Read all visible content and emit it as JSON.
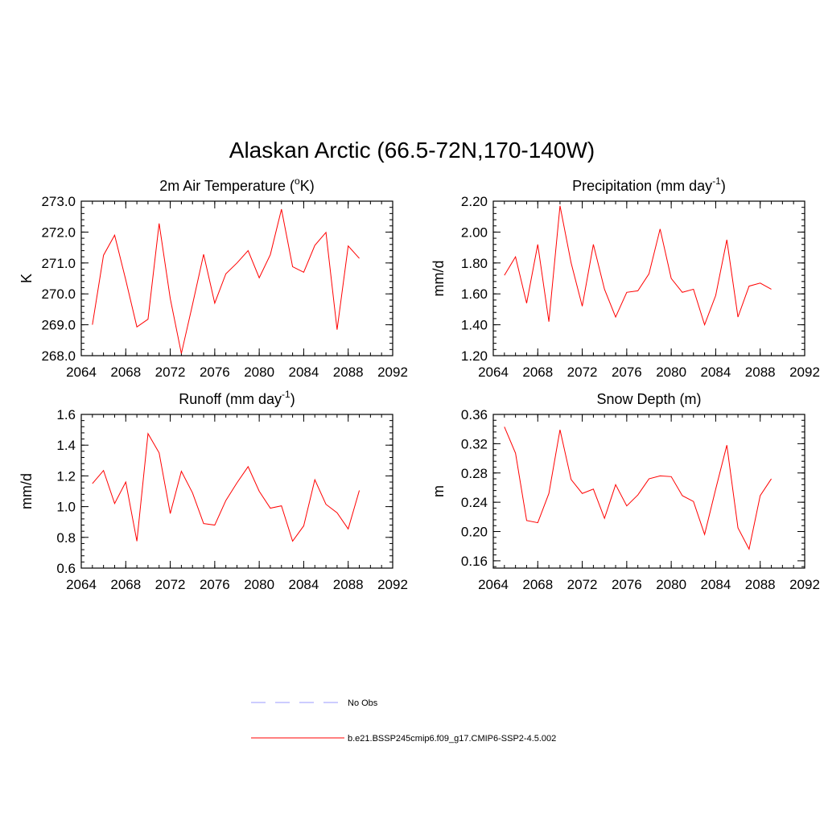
{
  "title": "Alaskan Arctic (66.5-72N,170-140W)",
  "legend": {
    "items": [
      {
        "label": "No Obs",
        "color": "#9999ff",
        "dash": true
      },
      {
        "label": "b.e21.BSSP245cmip6.f09_g17.CMIP6-SSP2-4.5.002",
        "color": "#ff0000",
        "dash": false
      }
    ]
  },
  "chart_data": [
    {
      "type": "line",
      "title_main": "2m Air Temperature (",
      "title_sup": "o",
      "title_tail": "K)",
      "ylabel": "K",
      "xlim": [
        2064,
        2092
      ],
      "ylim": [
        268.0,
        273.0
      ],
      "xticks": [
        2064,
        2068,
        2072,
        2076,
        2080,
        2084,
        2088,
        2092
      ],
      "xtick_labels": [
        "2064",
        "2068",
        "2072",
        "2076",
        "2080",
        "2084",
        "2088",
        "2092"
      ],
      "yticks": [
        268.0,
        269.0,
        270.0,
        271.0,
        272.0,
        273.0
      ],
      "ytick_labels": [
        "268.0",
        "269.0",
        "270.0",
        "271.0",
        "272.0",
        "273.0"
      ],
      "series": [
        {
          "color": "#ff0000",
          "x": [
            2065,
            2066,
            2067,
            2068,
            2069,
            2070,
            2071,
            2072,
            2073,
            2074,
            2075,
            2076,
            2077,
            2078,
            2079,
            2080,
            2081,
            2082,
            2083,
            2084,
            2085,
            2086,
            2087,
            2088,
            2089
          ],
          "y": [
            269.0,
            271.25,
            271.9,
            270.45,
            268.93,
            269.18,
            272.28,
            269.85,
            268.07,
            269.65,
            271.28,
            269.7,
            270.65,
            271.0,
            271.4,
            270.52,
            271.27,
            272.74,
            270.88,
            270.7,
            271.57,
            271.99,
            268.84,
            271.55,
            271.15
          ]
        }
      ]
    },
    {
      "type": "line",
      "title_main": "Precipitation (mm day",
      "title_sup": "-1",
      "title_tail": ")",
      "ylabel": "mm/d",
      "xlim": [
        2064,
        2092
      ],
      "ylim": [
        1.2,
        2.2
      ],
      "xticks": [
        2064,
        2068,
        2072,
        2076,
        2080,
        2084,
        2088,
        2092
      ],
      "xtick_labels": [
        "2064",
        "2068",
        "2072",
        "2076",
        "2080",
        "2084",
        "2088",
        "2092"
      ],
      "yticks": [
        1.2,
        1.4,
        1.6,
        1.8,
        2.0,
        2.2
      ],
      "ytick_labels": [
        "1.20",
        "1.40",
        "1.60",
        "1.80",
        "2.00",
        "2.20"
      ],
      "series": [
        {
          "color": "#ff0000",
          "x": [
            2065,
            2066,
            2067,
            2068,
            2069,
            2070,
            2071,
            2072,
            2073,
            2074,
            2075,
            2076,
            2077,
            2078,
            2079,
            2080,
            2081,
            2082,
            2083,
            2084,
            2085,
            2086,
            2087,
            2088,
            2089
          ],
          "y": [
            1.72,
            1.84,
            1.54,
            1.92,
            1.42,
            2.17,
            1.8,
            1.52,
            1.92,
            1.63,
            1.45,
            1.61,
            1.62,
            1.73,
            2.02,
            1.7,
            1.61,
            1.63,
            1.4,
            1.59,
            1.95,
            1.45,
            1.65,
            1.67,
            1.63
          ]
        }
      ]
    },
    {
      "type": "line",
      "title_main": "Runoff (mm day",
      "title_sup": "-1",
      "title_tail": ")",
      "ylabel": "mm/d",
      "xlim": [
        2064,
        2092
      ],
      "ylim": [
        0.6,
        1.6
      ],
      "xticks": [
        2064,
        2068,
        2072,
        2076,
        2080,
        2084,
        2088,
        2092
      ],
      "xtick_labels": [
        "2064",
        "2068",
        "2072",
        "2076",
        "2080",
        "2084",
        "2088",
        "2092"
      ],
      "yticks": [
        0.6,
        0.8,
        1.0,
        1.2,
        1.4,
        1.6
      ],
      "ytick_labels": [
        "0.6",
        "0.8",
        "1.0",
        "1.2",
        "1.4",
        "1.6"
      ],
      "series": [
        {
          "color": "#ff0000",
          "x": [
            2065,
            2066,
            2067,
            2068,
            2069,
            2070,
            2071,
            2072,
            2073,
            2074,
            2075,
            2076,
            2077,
            2078,
            2079,
            2080,
            2081,
            2082,
            2083,
            2084,
            2085,
            2086,
            2087,
            2088,
            2089
          ],
          "y": [
            1.15,
            1.235,
            1.02,
            1.16,
            0.775,
            1.475,
            1.35,
            0.955,
            1.23,
            1.09,
            0.89,
            0.88,
            1.04,
            1.155,
            1.26,
            1.1,
            0.99,
            1.005,
            0.775,
            0.875,
            1.175,
            1.015,
            0.96,
            0.855,
            1.105
          ]
        }
      ]
    },
    {
      "type": "line",
      "title_main": "Snow Depth (m)",
      "title_sup": "",
      "title_tail": "",
      "ylabel": "m",
      "xlim": [
        2064,
        2092
      ],
      "ylim": [
        0.15,
        0.36
      ],
      "xticks": [
        2064,
        2068,
        2072,
        2076,
        2080,
        2084,
        2088,
        2092
      ],
      "xtick_labels": [
        "2064",
        "2068",
        "2072",
        "2076",
        "2080",
        "2084",
        "2088",
        "2092"
      ],
      "yticks": [
        0.16,
        0.2,
        0.24,
        0.28,
        0.32,
        0.36
      ],
      "ytick_labels": [
        "0.16",
        "0.20",
        "0.24",
        "0.28",
        "0.32",
        "0.36"
      ],
      "series": [
        {
          "color": "#ff0000",
          "x": [
            2065,
            2066,
            2067,
            2068,
            2069,
            2070,
            2071,
            2072,
            2073,
            2074,
            2075,
            2076,
            2077,
            2078,
            2079,
            2080,
            2081,
            2082,
            2083,
            2084,
            2085,
            2086,
            2087,
            2088,
            2089
          ],
          "y": [
            0.343,
            0.307,
            0.215,
            0.212,
            0.252,
            0.339,
            0.271,
            0.252,
            0.258,
            0.218,
            0.264,
            0.235,
            0.25,
            0.272,
            0.276,
            0.275,
            0.249,
            0.241,
            0.196,
            0.258,
            0.318,
            0.205,
            0.176,
            0.249,
            0.272
          ]
        }
      ]
    }
  ]
}
